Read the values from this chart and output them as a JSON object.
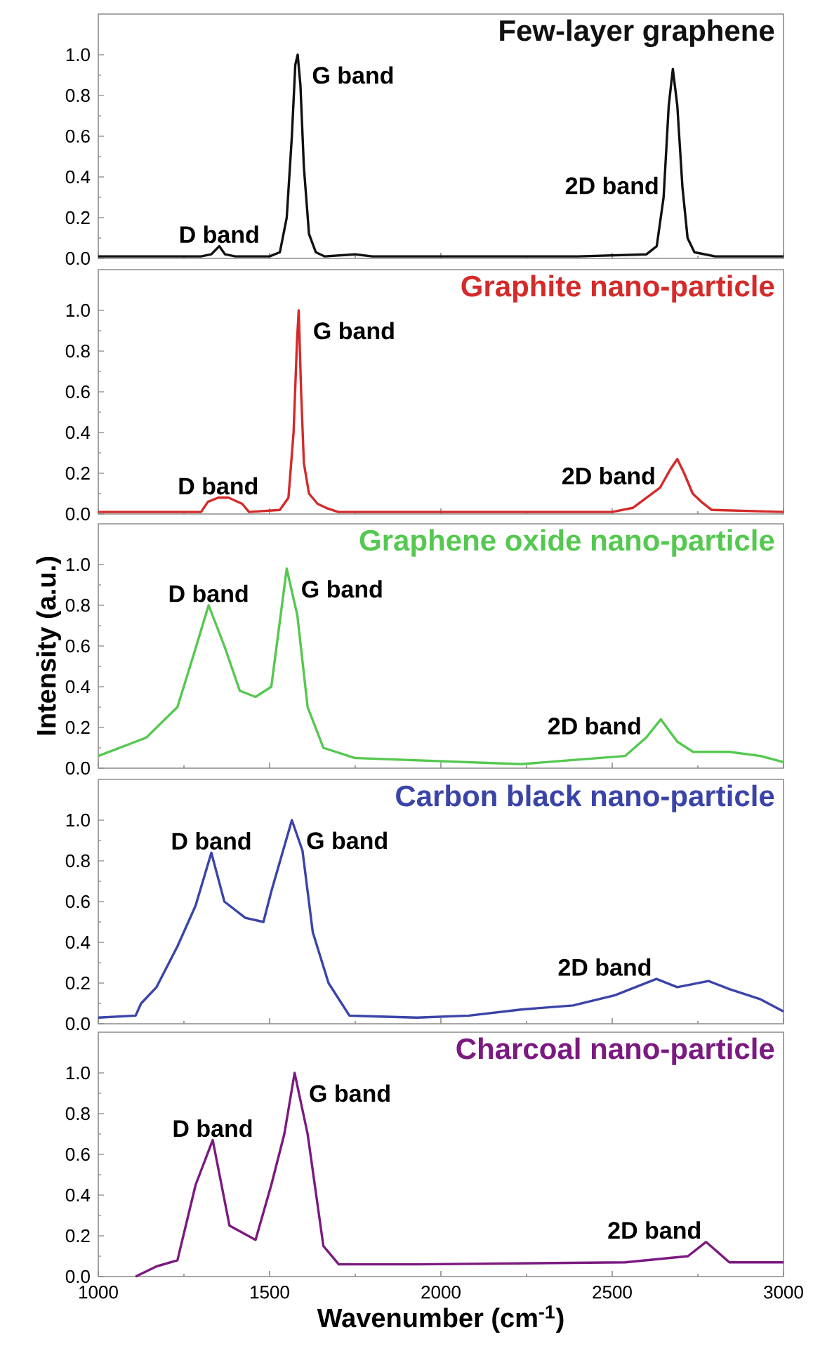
{
  "chart_data": [
    {
      "type": "line",
      "title": "Few-layer graphene",
      "tick_labels": "y",
      "xlim": [
        1000,
        3000
      ],
      "ylim": [
        0,
        1.2
      ],
      "xticks": [
        1000,
        1500,
        2000,
        2500,
        3000
      ],
      "yticks": [
        {
          "value": 0,
          "label": "0.0"
        },
        {
          "value": 0.2,
          "label": "0.2"
        },
        {
          "value": 0.4,
          "label": "0.4"
        },
        {
          "value": 0.6,
          "label": "0.6"
        },
        {
          "value": 0.8,
          "label": "0.8"
        },
        {
          "value": 1.0,
          "label": "1.0"
        }
      ],
      "x": [
        1000,
        1300,
        1330,
        1353,
        1370,
        1400,
        1500,
        1530,
        1550,
        1565,
        1575,
        1582,
        1590,
        1600,
        1615,
        1635,
        1660,
        1750,
        1800,
        2000,
        2400,
        2600,
        2630,
        2650,
        2665,
        2677,
        2690,
        2705,
        2720,
        2740,
        2800,
        3000
      ],
      "series": [
        {
          "color": "#111111",
          "values": [
            0.01,
            0.01,
            0.02,
            0.06,
            0.02,
            0.01,
            0.01,
            0.03,
            0.2,
            0.6,
            0.95,
            1.0,
            0.85,
            0.45,
            0.12,
            0.03,
            0.01,
            0.02,
            0.01,
            0.01,
            0.01,
            0.02,
            0.06,
            0.3,
            0.75,
            0.93,
            0.75,
            0.35,
            0.1,
            0.03,
            0.01,
            0.01
          ]
        }
      ],
      "annotations": [
        {
          "text": "D band",
          "x": 1353,
          "y": 0.06
        },
        {
          "text": "G band",
          "x": 1582,
          "y": 1.0
        },
        {
          "text": "2D band",
          "x": 2650,
          "y": 0.3
        }
      ]
    },
    {
      "type": "line",
      "title": "Graphite nano-particle",
      "tick_labels": "y",
      "xlim": [
        1000,
        3000
      ],
      "ylim": [
        0,
        1.2
      ],
      "xticks": [
        1000,
        1500,
        2000,
        2500,
        3000
      ],
      "yticks": [
        {
          "value": 0,
          "label": "0.0"
        },
        {
          "value": 0.2,
          "label": "0.2"
        },
        {
          "value": 0.4,
          "label": "0.4"
        },
        {
          "value": 0.6,
          "label": "0.6"
        },
        {
          "value": 0.8,
          "label": "0.8"
        },
        {
          "value": 1.0,
          "label": "1.0"
        }
      ],
      "x": [
        1000,
        1300,
        1320,
        1350,
        1380,
        1420,
        1440,
        1530,
        1555,
        1570,
        1580,
        1585,
        1592,
        1600,
        1615,
        1640,
        1665,
        1700,
        2000,
        2500,
        2560,
        2600,
        2640,
        2670,
        2690,
        2710,
        2735,
        2760,
        2790,
        3000
      ],
      "series": [
        {
          "color": "#d42a2a",
          "values": [
            0.01,
            0.01,
            0.06,
            0.08,
            0.08,
            0.05,
            0.01,
            0.02,
            0.08,
            0.4,
            0.85,
            1.0,
            0.6,
            0.25,
            0.1,
            0.05,
            0.03,
            0.01,
            0.01,
            0.01,
            0.03,
            0.08,
            0.13,
            0.22,
            0.27,
            0.2,
            0.1,
            0.06,
            0.02,
            0.01
          ]
        }
      ],
      "annotations": [
        {
          "text": "D band",
          "x": 1350,
          "y": 0.08
        },
        {
          "text": "G band",
          "x": 1585,
          "y": 1.0
        },
        {
          "text": "2D band",
          "x": 2640,
          "y": 0.13
        }
      ]
    },
    {
      "type": "line",
      "title": "Graphene oxide nano-particle",
      "ylabel": "Intensity (a.u.)",
      "tick_labels": "y",
      "xlim": [
        1000,
        3000
      ],
      "ylim": [
        0,
        1.2
      ],
      "xticks": [
        1000,
        1500,
        2000,
        2500,
        3000
      ],
      "yticks": [
        {
          "value": 0,
          "label": "0.0"
        },
        {
          "value": 0.2,
          "label": "0.2"
        },
        {
          "value": 0.4,
          "label": "0.4"
        },
        {
          "value": 0.6,
          "label": "0.6"
        },
        {
          "value": 0.8,
          "label": "0.8"
        },
        {
          "value": 1.0,
          "label": "1.0"
        }
      ],
      "x": [
        1000,
        1140,
        1231,
        1277,
        1322,
        1368,
        1413,
        1459,
        1505,
        1550,
        1581,
        1611,
        1657,
        1748,
        2234,
        2386,
        2538,
        2599,
        2642,
        2690,
        2736,
        2842,
        2933,
        3000
      ],
      "series": [
        {
          "color": "#55c850",
          "values": [
            0.06,
            0.15,
            0.3,
            0.55,
            0.8,
            0.6,
            0.38,
            0.35,
            0.4,
            0.98,
            0.75,
            0.3,
            0.1,
            0.05,
            0.02,
            0.04,
            0.06,
            0.15,
            0.24,
            0.13,
            0.08,
            0.08,
            0.06,
            0.03
          ]
        }
      ],
      "annotations": [
        {
          "text": "D band",
          "x": 1322,
          "y": 0.8
        },
        {
          "text": "G band",
          "x": 1550,
          "y": 0.98
        },
        {
          "text": "2D band",
          "x": 2599,
          "y": 0.15
        }
      ]
    },
    {
      "type": "line",
      "title": "Carbon black nano-particle",
      "tick_labels": "y",
      "xlim": [
        1000,
        3000
      ],
      "ylim": [
        0,
        1.2
      ],
      "xticks": [
        1000,
        1500,
        2000,
        2500,
        3000
      ],
      "yticks": [
        {
          "value": 0,
          "label": "0.0"
        },
        {
          "value": 0.2,
          "label": "0.2"
        },
        {
          "value": 0.4,
          "label": "0.4"
        },
        {
          "value": 0.6,
          "label": "0.6"
        },
        {
          "value": 0.8,
          "label": "0.8"
        },
        {
          "value": 1.0,
          "label": "1.0"
        }
      ],
      "x": [
        1000,
        1109,
        1125,
        1170,
        1231,
        1284,
        1330,
        1368,
        1429,
        1482,
        1505,
        1565,
        1596,
        1626,
        1672,
        1733,
        1930,
        2082,
        2234,
        2386,
        2508,
        2629,
        2690,
        2781,
        2842,
        2933,
        3000
      ],
      "series": [
        {
          "color": "#3a44a8",
          "values": [
            0.03,
            0.04,
            0.1,
            0.18,
            0.38,
            0.58,
            0.84,
            0.6,
            0.52,
            0.5,
            0.65,
            1.0,
            0.85,
            0.45,
            0.2,
            0.04,
            0.03,
            0.04,
            0.07,
            0.09,
            0.14,
            0.22,
            0.18,
            0.21,
            0.17,
            0.12,
            0.06
          ]
        }
      ],
      "annotations": [
        {
          "text": "D band",
          "x": 1330,
          "y": 0.84
        },
        {
          "text": "G band",
          "x": 1565,
          "y": 1.0
        },
        {
          "text": "2D band",
          "x": 2629,
          "y": 0.22
        }
      ]
    },
    {
      "type": "line",
      "title": "Charcoal nano-particle",
      "xlabel": "Wavenumber (cm$^{-1}$)",
      "xlim": [
        1000,
        3000
      ],
      "ylim": [
        0,
        1.2
      ],
      "xticks": [
        1000,
        1500,
        2000,
        2500,
        3000
      ],
      "yticks": [
        {
          "value": 0,
          "label": "0.0"
        },
        {
          "value": 0.2,
          "label": "0.2"
        },
        {
          "value": 0.4,
          "label": "0.4"
        },
        {
          "value": 0.6,
          "label": "0.6"
        },
        {
          "value": 0.8,
          "label": "0.8"
        },
        {
          "value": 1.0,
          "label": "1.0"
        }
      ],
      "x": [
        1109,
        1170,
        1231,
        1284,
        1334,
        1383,
        1459,
        1505,
        1543,
        1573,
        1611,
        1657,
        1702,
        1930,
        2538,
        2721,
        2774,
        2842,
        3000
      ],
      "series": [
        {
          "color": "#7b1a80",
          "values": [
            0.0,
            0.05,
            0.08,
            0.45,
            0.67,
            0.25,
            0.18,
            0.45,
            0.7,
            1.0,
            0.7,
            0.15,
            0.06,
            0.06,
            0.07,
            0.1,
            0.17,
            0.07,
            0.07
          ]
        }
      ],
      "annotations": [
        {
          "text": "D band",
          "x": 1334,
          "y": 0.67
        },
        {
          "text": "G band",
          "x": 1573,
          "y": 1.0
        },
        {
          "text": "2D band",
          "x": 2774,
          "y": 0.17
        }
      ]
    }
  ]
}
